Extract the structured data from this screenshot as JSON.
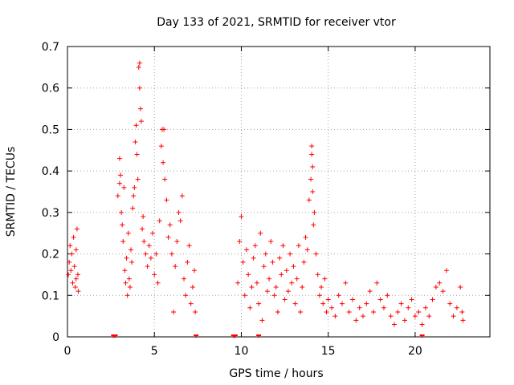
{
  "chart_data": {
    "type": "scatter",
    "title": "Day 133 of 2021, SRMTID for receiver vtor",
    "xlabel": "GPS time / hours",
    "ylabel": "SRMTID / TECUs",
    "xlim": [
      0,
      24.3
    ],
    "ylim": [
      0,
      0.7
    ],
    "xticks": [
      0,
      5,
      10,
      15,
      20
    ],
    "yticks": [
      0,
      0.1,
      0.2,
      0.3,
      0.4,
      0.5,
      0.6,
      0.7
    ],
    "xtick_labels": [
      "0",
      "5",
      "10",
      "15",
      "20"
    ],
    "ytick_labels": [
      "0",
      "0.1",
      "0.2",
      "0.3",
      "0.4",
      "0.5",
      "0.6",
      "0.7"
    ],
    "grid": true,
    "marker": "+",
    "color": "#ff0000",
    "series": [
      {
        "name": "SRMTID",
        "points": [
          [
            0.05,
            0.15
          ],
          [
            0.1,
            0.18
          ],
          [
            0.15,
            0.22
          ],
          [
            0.2,
            0.16
          ],
          [
            0.25,
            0.2
          ],
          [
            0.3,
            0.13
          ],
          [
            0.35,
            0.24
          ],
          [
            0.4,
            0.17
          ],
          [
            0.45,
            0.12
          ],
          [
            0.5,
            0.14
          ],
          [
            0.55,
            0.26
          ],
          [
            0.6,
            0.15
          ],
          [
            0.62,
            0.11
          ],
          [
            0.5,
            0.21
          ],
          [
            2.9,
            0.34
          ],
          [
            3.0,
            0.37
          ],
          [
            3.0,
            0.43
          ],
          [
            3.05,
            0.39
          ],
          [
            3.1,
            0.3
          ],
          [
            3.15,
            0.27
          ],
          [
            3.2,
            0.23
          ],
          [
            3.25,
            0.36
          ],
          [
            3.3,
            0.16
          ],
          [
            3.35,
            0.13
          ],
          [
            3.4,
            0.19
          ],
          [
            3.45,
            0.1
          ],
          [
            3.5,
            0.25
          ],
          [
            3.55,
            0.14
          ],
          [
            3.6,
            0.12
          ],
          [
            3.65,
            0.21
          ],
          [
            3.7,
            0.18
          ],
          [
            3.75,
            0.31
          ],
          [
            3.8,
            0.34
          ],
          [
            3.85,
            0.36
          ],
          [
            3.9,
            0.47
          ],
          [
            3.95,
            0.51
          ],
          [
            4.0,
            0.44
          ],
          [
            4.05,
            0.38
          ],
          [
            4.1,
            0.65
          ],
          [
            4.15,
            0.66
          ],
          [
            4.15,
            0.6
          ],
          [
            4.2,
            0.55
          ],
          [
            4.25,
            0.52
          ],
          [
            4.3,
            0.26
          ],
          [
            4.35,
            0.29
          ],
          [
            4.4,
            0.23
          ],
          [
            4.5,
            0.2
          ],
          [
            4.6,
            0.17
          ],
          [
            4.7,
            0.22
          ],
          [
            4.8,
            0.19
          ],
          [
            4.9,
            0.25
          ],
          [
            5.0,
            0.15
          ],
          [
            5.1,
            0.2
          ],
          [
            5.2,
            0.13
          ],
          [
            5.3,
            0.28
          ],
          [
            5.4,
            0.46
          ],
          [
            5.45,
            0.5
          ],
          [
            5.5,
            0.42
          ],
          [
            5.55,
            0.5
          ],
          [
            5.6,
            0.38
          ],
          [
            5.7,
            0.33
          ],
          [
            5.8,
            0.24
          ],
          [
            5.9,
            0.27
          ],
          [
            6.0,
            0.2
          ],
          [
            6.1,
            0.06
          ],
          [
            6.2,
            0.17
          ],
          [
            6.3,
            0.23
          ],
          [
            6.4,
            0.3
          ],
          [
            6.5,
            0.28
          ],
          [
            6.6,
            0.34
          ],
          [
            6.7,
            0.14
          ],
          [
            6.8,
            0.1
          ],
          [
            6.9,
            0.18
          ],
          [
            7.0,
            0.22
          ],
          [
            7.1,
            0.08
          ],
          [
            7.2,
            0.12
          ],
          [
            7.3,
            0.16
          ],
          [
            7.35,
            0.06
          ],
          [
            9.8,
            0.13
          ],
          [
            9.9,
            0.23
          ],
          [
            10.0,
            0.29
          ],
          [
            10.1,
            0.18
          ],
          [
            10.2,
            0.1
          ],
          [
            10.3,
            0.21
          ],
          [
            10.4,
            0.15
          ],
          [
            10.5,
            0.07
          ],
          [
            10.6,
            0.12
          ],
          [
            10.7,
            0.19
          ],
          [
            10.8,
            0.22
          ],
          [
            10.9,
            0.13
          ],
          [
            11.0,
            0.08
          ],
          [
            11.1,
            0.25
          ],
          [
            11.2,
            0.04
          ],
          [
            11.3,
            0.17
          ],
          [
            11.4,
            0.2
          ],
          [
            11.5,
            0.11
          ],
          [
            11.6,
            0.14
          ],
          [
            11.7,
            0.23
          ],
          [
            11.8,
            0.18
          ],
          [
            11.9,
            0.1
          ],
          [
            12.0,
            0.12
          ],
          [
            12.1,
            0.06
          ],
          [
            12.2,
            0.19
          ],
          [
            12.3,
            0.15
          ],
          [
            12.4,
            0.22
          ],
          [
            12.5,
            0.09
          ],
          [
            12.6,
            0.16
          ],
          [
            12.7,
            0.11
          ],
          [
            12.8,
            0.2
          ],
          [
            12.9,
            0.13
          ],
          [
            13.0,
            0.17
          ],
          [
            13.1,
            0.08
          ],
          [
            13.2,
            0.14
          ],
          [
            13.3,
            0.22
          ],
          [
            13.4,
            0.06
          ],
          [
            13.5,
            0.12
          ],
          [
            13.6,
            0.18
          ],
          [
            13.7,
            0.24
          ],
          [
            13.8,
            0.21
          ],
          [
            13.9,
            0.33
          ],
          [
            14.0,
            0.38
          ],
          [
            14.05,
            0.44
          ],
          [
            14.05,
            0.46
          ],
          [
            14.1,
            0.41
          ],
          [
            14.1,
            0.35
          ],
          [
            14.15,
            0.27
          ],
          [
            14.2,
            0.3
          ],
          [
            14.3,
            0.2
          ],
          [
            14.4,
            0.15
          ],
          [
            14.5,
            0.1
          ],
          [
            14.6,
            0.12
          ],
          [
            14.7,
            0.08
          ],
          [
            14.8,
            0.14
          ],
          [
            14.9,
            0.06
          ],
          [
            15.0,
            0.09
          ],
          [
            15.2,
            0.07
          ],
          [
            15.4,
            0.05
          ],
          [
            15.6,
            0.1
          ],
          [
            15.8,
            0.08
          ],
          [
            16.0,
            0.13
          ],
          [
            16.2,
            0.06
          ],
          [
            16.4,
            0.09
          ],
          [
            16.6,
            0.04
          ],
          [
            16.8,
            0.07
          ],
          [
            17.0,
            0.05
          ],
          [
            17.2,
            0.08
          ],
          [
            17.4,
            0.11
          ],
          [
            17.6,
            0.06
          ],
          [
            17.8,
            0.13
          ],
          [
            18.0,
            0.09
          ],
          [
            18.2,
            0.07
          ],
          [
            18.4,
            0.1
          ],
          [
            18.6,
            0.05
          ],
          [
            18.8,
            0.03
          ],
          [
            19.0,
            0.06
          ],
          [
            19.2,
            0.08
          ],
          [
            19.4,
            0.04
          ],
          [
            19.6,
            0.07
          ],
          [
            19.8,
            0.09
          ],
          [
            20.0,
            0.05
          ],
          [
            20.2,
            0.06
          ],
          [
            20.4,
            0.03
          ],
          [
            20.6,
            0.07
          ],
          [
            20.8,
            0.05
          ],
          [
            21.0,
            0.09
          ],
          [
            21.2,
            0.12
          ],
          [
            21.4,
            0.13
          ],
          [
            21.6,
            0.11
          ],
          [
            21.8,
            0.16
          ],
          [
            22.0,
            0.08
          ],
          [
            22.2,
            0.05
          ],
          [
            22.4,
            0.07
          ],
          [
            22.6,
            0.12
          ],
          [
            22.7,
            0.06
          ],
          [
            22.75,
            0.04
          ]
        ]
      }
    ],
    "baseline_markers": [
      2.65,
      2.75,
      9.55,
      9.65,
      11.0,
      7.4,
      20.4
    ]
  }
}
